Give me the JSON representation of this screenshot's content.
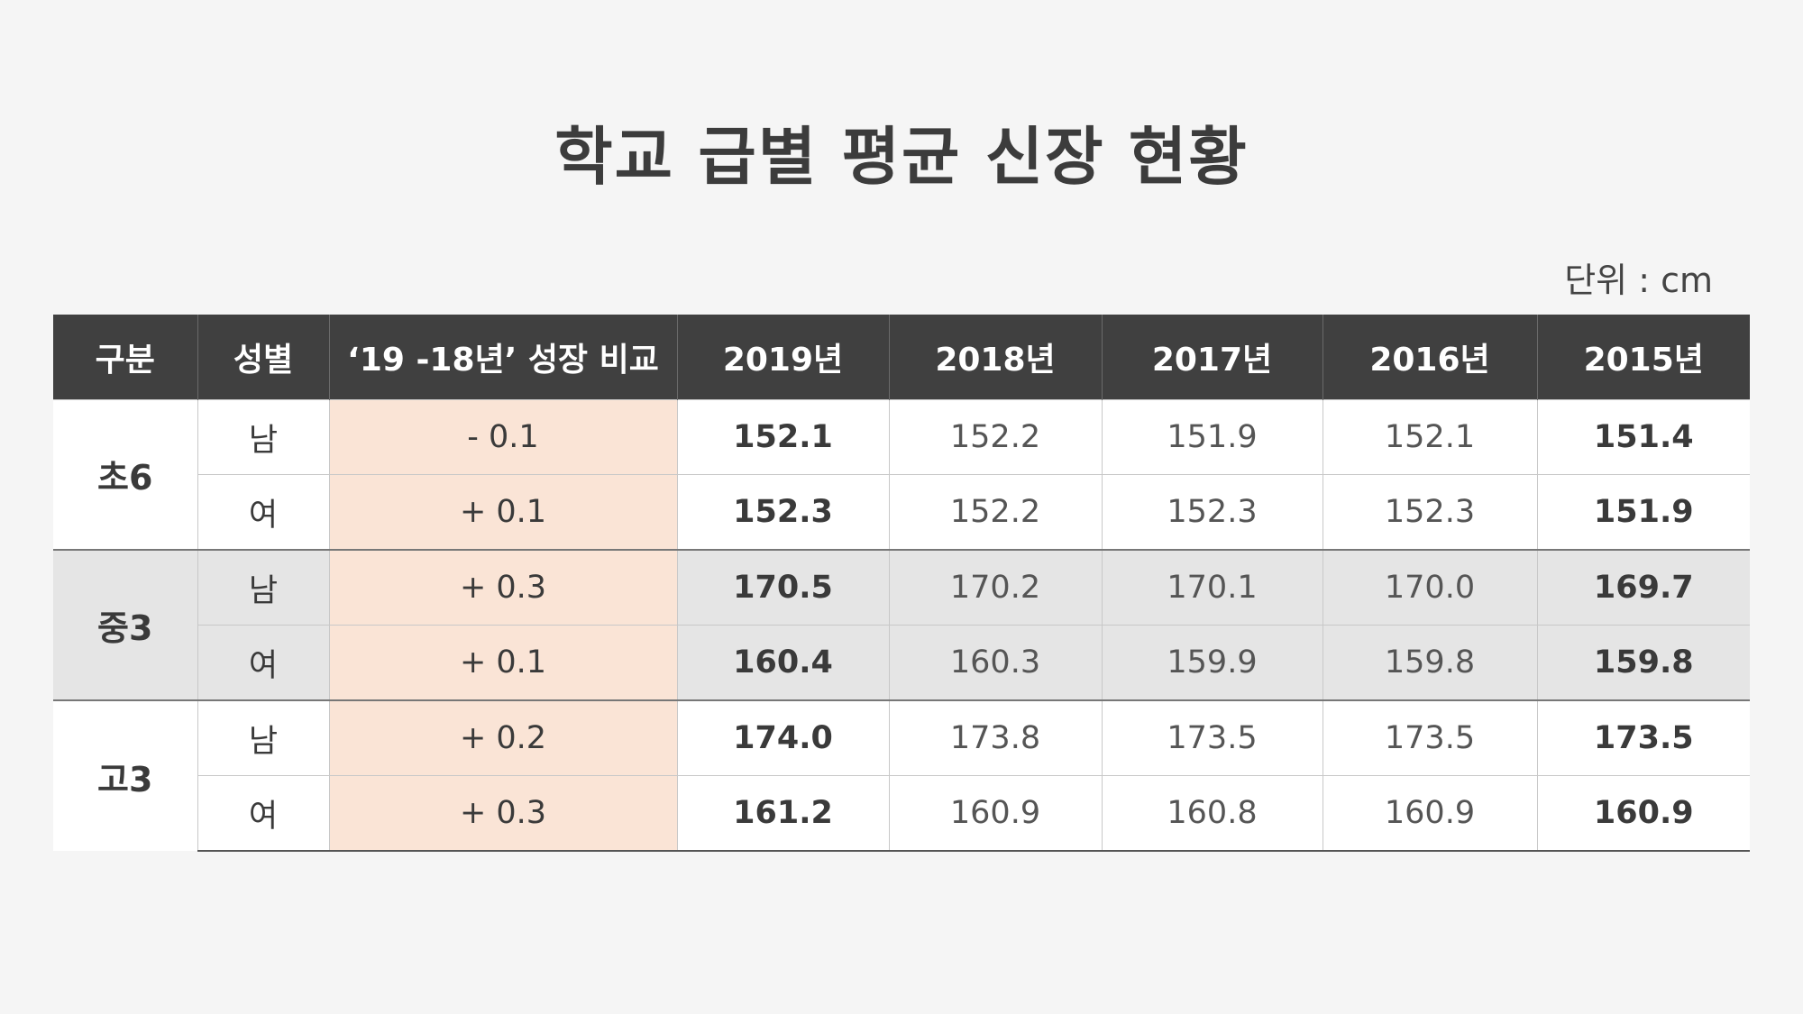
{
  "title": "학교 급별 평균 신장 현황",
  "unit": "단위 : cm",
  "headers": [
    "구분",
    "성별",
    "‘19 -18년’ 성장 비교",
    "2019년",
    "2018년",
    "2017년",
    "2016년",
    "2015년"
  ],
  "rows": [
    {
      "group": "초6",
      "gender": "남",
      "diff": "- 0.1",
      "v2019": "152.1",
      "v2018": "152.2",
      "v2017": "151.9",
      "v2016": "152.1",
      "v2015": "151.4"
    },
    {
      "group": "초6",
      "gender": "여",
      "diff": "+ 0.1",
      "v2019": "152.3",
      "v2018": "152.2",
      "v2017": "152.3",
      "v2016": "152.3",
      "v2015": "151.9"
    },
    {
      "group": "중3",
      "gender": "남",
      "diff": "+ 0.3",
      "v2019": "170.5",
      "v2018": "170.2",
      "v2017": "170.1",
      "v2016": "170.0",
      "v2015": "169.7"
    },
    {
      "group": "중3",
      "gender": "여",
      "diff": "+ 0.1",
      "v2019": "160.4",
      "v2018": "160.3",
      "v2017": "159.9",
      "v2016": "159.8",
      "v2015": "159.8"
    },
    {
      "group": "고3",
      "gender": "남",
      "diff": "+ 0.2",
      "v2019": "174.0",
      "v2018": "173.8",
      "v2017": "173.5",
      "v2016": "173.5",
      "v2015": "173.5"
    },
    {
      "group": "고3",
      "gender": "여",
      "diff": "+ 0.3",
      "v2019": "161.2",
      "v2018": "160.9",
      "v2017": "160.8",
      "v2016": "160.9",
      "v2015": "160.9"
    }
  ],
  "colors": {
    "header_bg": "#404040",
    "diff_bg": "#fae4d6",
    "shade_bg": "#e5e5e5",
    "background": "#f5f5f5"
  },
  "chart_data": {
    "type": "table",
    "title": "학교 급별 평균 신장 현황",
    "unit": "cm",
    "columns": [
      "구분",
      "성별",
      "‘19 -18년’ 성장 비교",
      "2019년",
      "2018년",
      "2017년",
      "2016년",
      "2015년"
    ],
    "series": [
      {
        "name": "초6 남",
        "values": [
          152.1,
          152.2,
          151.9,
          152.1,
          151.4
        ],
        "diff": -0.1
      },
      {
        "name": "초6 여",
        "values": [
          152.3,
          152.2,
          152.3,
          152.3,
          151.9
        ],
        "diff": 0.1
      },
      {
        "name": "중3 남",
        "values": [
          170.5,
          170.2,
          170.1,
          170.0,
          169.7
        ],
        "diff": 0.3
      },
      {
        "name": "중3 여",
        "values": [
          160.4,
          160.3,
          159.9,
          159.8,
          159.8
        ],
        "diff": 0.1
      },
      {
        "name": "고3 남",
        "values": [
          174.0,
          173.8,
          173.5,
          173.5,
          173.5
        ],
        "diff": 0.2
      },
      {
        "name": "고3 여",
        "values": [
          161.2,
          160.9,
          160.8,
          160.9,
          160.9
        ],
        "diff": 0.3
      }
    ],
    "categories": [
      "2019년",
      "2018년",
      "2017년",
      "2016년",
      "2015년"
    ]
  }
}
